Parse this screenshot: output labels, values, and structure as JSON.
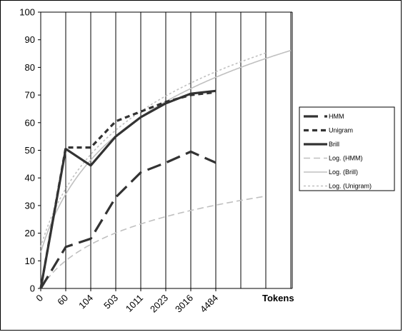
{
  "chart_data": {
    "type": "line",
    "title": "",
    "xlabel": "Tokens",
    "ylabel": "",
    "ylim": [
      0,
      100
    ],
    "yticks": [
      "0",
      "10",
      "20",
      "30",
      "40",
      "50",
      "60",
      "70",
      "80",
      "90",
      "100"
    ],
    "categories": [
      "0",
      "60",
      "104",
      "503",
      "1011",
      "2023",
      "3016",
      "4484"
    ],
    "grid": {
      "vertical": true,
      "horizontal": false
    },
    "legend_position": "right",
    "series": [
      {
        "name": "HMM",
        "style": "long-dash",
        "color": "#333333",
        "points": [
          [
            0,
            0
          ],
          [
            1,
            15
          ],
          [
            2,
            18
          ],
          [
            3,
            33
          ],
          [
            4,
            42
          ],
          [
            5,
            45.5
          ],
          [
            6,
            49.5
          ],
          [
            7,
            45.5
          ]
        ]
      },
      {
        "name": "Unigram",
        "style": "short-dash",
        "color": "#333333",
        "points": [
          [
            0,
            0
          ],
          [
            1,
            51
          ],
          [
            2,
            51
          ],
          [
            3,
            60.5
          ],
          [
            4,
            64
          ],
          [
            5,
            67.5
          ],
          [
            6,
            70
          ],
          [
            7,
            71
          ]
        ]
      },
      {
        "name": "Brill",
        "style": "solid",
        "color": "#333333",
        "points": [
          [
            0,
            0
          ],
          [
            1,
            50.5
          ],
          [
            2,
            44.5
          ],
          [
            3,
            55
          ],
          [
            4,
            62
          ],
          [
            5,
            67
          ],
          [
            6,
            70.5
          ],
          [
            7,
            71.5
          ]
        ]
      },
      {
        "name": "Log. (HMM)",
        "style": "trend-dash",
        "color": "#c0c0c0",
        "fit": {
          "a": 0,
          "b": 14.5,
          "x_end": 9
        }
      },
      {
        "name": "Log. (Brill)",
        "style": "trend-solid",
        "color": "#c0c0c0",
        "fit": {
          "a": 13,
          "b": 30.5,
          "x_end": 10
        }
      },
      {
        "name": "Log. (Unigram)",
        "style": "trend-dot",
        "color": "#c0c0c0",
        "fit": {
          "a": 15,
          "b": 30.5,
          "x_end": 9
        }
      }
    ]
  }
}
